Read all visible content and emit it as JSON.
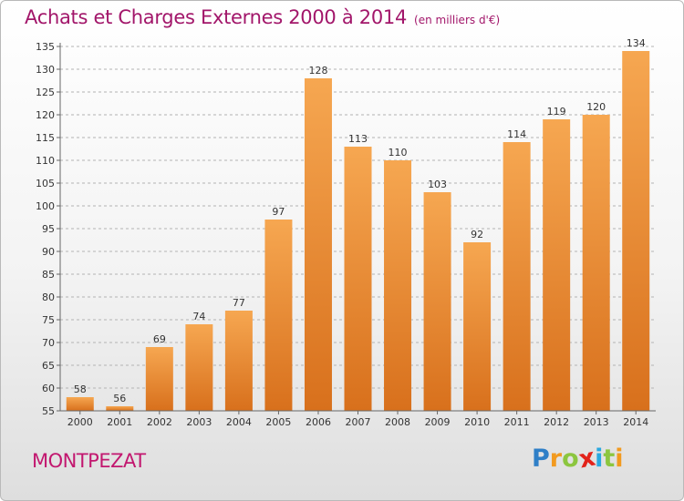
{
  "title": "Achats et Charges Externes 2000 à 2014",
  "subtitle": "(en milliers d'€)",
  "town": "MONTPEZAT",
  "brand": {
    "text": "Proxiti",
    "letters": [
      "P",
      "r",
      "o",
      "x",
      "i",
      "t",
      "i"
    ],
    "colors": [
      "#2f7fc7",
      "#f29a1f",
      "#8cc63f",
      "#e2231a",
      "#29a8e0",
      "#8cc63f",
      "#f29a1f"
    ]
  },
  "colors": {
    "title": "#a2166a",
    "town": "#c2176f",
    "bar_light": "#f6a751",
    "bar_dark": "#d8701c",
    "axis": "#666666",
    "grid": "#b3b3b3"
  },
  "chart_data": {
    "type": "bar",
    "categories": [
      "2000",
      "2001",
      "2002",
      "2003",
      "2004",
      "2005",
      "2006",
      "2007",
      "2008",
      "2009",
      "2010",
      "2011",
      "2012",
      "2013",
      "2014"
    ],
    "values": [
      58,
      56,
      69,
      74,
      77,
      97,
      128,
      113,
      110,
      103,
      92,
      114,
      119,
      120,
      134
    ],
    "title": "Achats et Charges Externes 2000 à 2014",
    "subtitle": "(en milliers d'€)",
    "xlabel": "",
    "ylabel": "",
    "ylim": [
      55,
      135
    ],
    "yticks": [
      55,
      60,
      65,
      70,
      75,
      80,
      85,
      90,
      95,
      100,
      105,
      110,
      115,
      120,
      125,
      130,
      135
    ],
    "grid": true,
    "data_labels": true
  }
}
